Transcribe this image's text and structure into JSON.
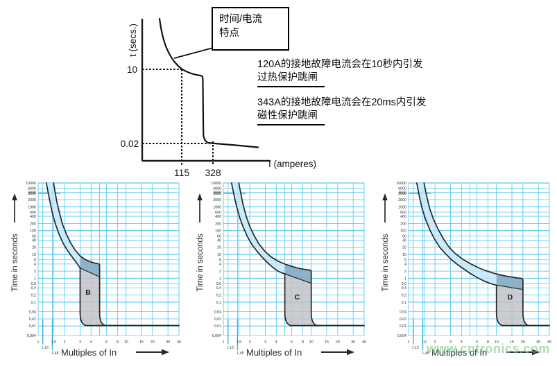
{
  "top_diagram": {
    "y_axis_label": "t (secs.)",
    "x_axis_label": "I (amperes)",
    "callout_line1": "时间/电流",
    "callout_line2": "特点",
    "tick_10": "10",
    "tick_002": "0.02",
    "tick_115": "115",
    "tick_328": "328",
    "note1_line1": "120A的接地故障电流会在10秒内引发",
    "note1_line2": "过热保护跳闸",
    "note2_line1": "343A的接地故障电流会在20ms内引发",
    "note2_line2": "磁性保护跳闸"
  },
  "watermark": "www.cntronics.com",
  "chart_data": {
    "type": "line",
    "description": "MCB time/current tripping characteristic bands for curve types B, C and D",
    "x_axis_label": "Multiples of In",
    "y_axis_label": "Time in seconds",
    "log_scale": true,
    "x_range": [
      1,
      40
    ],
    "y_range": [
      0.004,
      10000
    ],
    "y_tick_labels": [
      "10000",
      "6000",
      "4000",
      "3600",
      "2000",
      "1000",
      "600",
      "400",
      "200",
      "100",
      "60",
      "40",
      "20",
      "10",
      "6",
      "4",
      "2",
      "1",
      "0,6",
      "0,4",
      "0,2",
      "0,1",
      "0,04",
      "0,02",
      "0,01",
      "0,004"
    ],
    "y_tick_values": [
      10000,
      6000,
      4000,
      3600,
      2000,
      1000,
      600,
      400,
      200,
      100,
      60,
      40,
      20,
      10,
      6,
      4,
      2,
      1,
      0.6,
      0.4,
      0.2,
      0.1,
      0.04,
      0.02,
      0.01,
      0.004
    ],
    "y_strong_values": [
      10000,
      1000,
      100,
      10,
      1,
      0.1,
      0.01
    ],
    "x_tick_labels": [
      "1",
      "1,5",
      "2",
      "3",
      "4",
      "6",
      "8",
      "10",
      "15",
      "20",
      "30",
      "40"
    ],
    "x_tick_values": [
      1,
      1.5,
      2,
      3,
      4,
      6,
      8,
      10,
      15,
      20,
      30,
      40
    ],
    "x_grid_values": [
      1,
      1.13,
      1.45,
      1.5,
      2,
      3,
      4,
      5,
      6,
      8,
      10,
      15,
      20,
      30,
      40
    ],
    "sub_ticks": [
      {
        "label": "1,13",
        "value": 1.13
      },
      {
        "label": "1,45",
        "value": 1.45
      }
    ],
    "special_time_line": {
      "y": 3600,
      "x_end": 1.8
    },
    "instantaneous_floor_time": 0.01,
    "charts": [
      {
        "label": "B",
        "magnetic_trip_range": [
          3,
          5
        ],
        "label_pos": [
          3.7,
          0.21
        ],
        "diag_y": [
          2.7,
          1.15
        ],
        "upper_corner_y": 3.4,
        "upper": [
          [
            1.5,
            10000
          ],
          [
            1.56,
            4000
          ],
          [
            1.64,
            1500
          ],
          [
            1.76,
            500
          ],
          [
            1.9,
            180
          ],
          [
            2.1,
            70
          ],
          [
            2.35,
            30
          ],
          [
            2.65,
            15
          ],
          [
            3.0,
            8.8
          ],
          [
            3.4,
            6.3
          ],
          [
            3.9,
            5.0
          ],
          [
            4.4,
            4.4
          ],
          [
            4.75,
            4.15
          ]
        ],
        "lower": [
          [
            1.24,
            10000
          ],
          [
            1.3,
            4000
          ],
          [
            1.37,
            1500
          ],
          [
            1.46,
            500
          ],
          [
            1.58,
            180
          ],
          [
            1.73,
            70
          ],
          [
            1.92,
            30
          ],
          [
            2.15,
            15
          ],
          [
            2.4,
            8.5
          ],
          [
            2.65,
            5.2
          ],
          [
            2.85,
            3.6
          ],
          [
            3.0,
            2.7
          ]
        ]
      },
      {
        "label": "C",
        "magnetic_trip_range": [
          5,
          10
        ],
        "label_pos": [
          6.9,
          0.13
        ],
        "diag_y": [
          1.55,
          0.62
        ],
        "upper_corner_y": 1.9,
        "upper": [
          [
            1.5,
            10000
          ],
          [
            1.58,
            3600
          ],
          [
            1.68,
            1200
          ],
          [
            1.82,
            400
          ],
          [
            2.0,
            150
          ],
          [
            2.25,
            60
          ],
          [
            2.55,
            27
          ],
          [
            2.95,
            14
          ],
          [
            3.45,
            8.2
          ],
          [
            4.1,
            5.5
          ],
          [
            4.9,
            4.1
          ],
          [
            5.8,
            3.3
          ],
          [
            6.9,
            2.75
          ],
          [
            8.0,
            2.45
          ],
          [
            9.0,
            2.3
          ]
        ],
        "lower": [
          [
            1.24,
            10000
          ],
          [
            1.31,
            3600
          ],
          [
            1.4,
            1200
          ],
          [
            1.52,
            400
          ],
          [
            1.67,
            150
          ],
          [
            1.86,
            60
          ],
          [
            2.1,
            27
          ],
          [
            2.4,
            14
          ],
          [
            2.75,
            7.8
          ],
          [
            3.15,
            4.7
          ],
          [
            3.6,
            3.0
          ],
          [
            4.1,
            2.1
          ],
          [
            4.6,
            1.7
          ],
          [
            5.0,
            1.55
          ]
        ]
      },
      {
        "label": "D",
        "magnetic_trip_range": [
          10,
          20
        ],
        "label_pos": [
          14.3,
          0.13
        ],
        "diag_y": [
          0.52,
          0.34
        ],
        "upper_corner_y": 0.85,
        "upper": [
          [
            1.5,
            10000
          ],
          [
            1.6,
            3000
          ],
          [
            1.73,
            900
          ],
          [
            1.92,
            300
          ],
          [
            2.18,
            110
          ],
          [
            2.5,
            45
          ],
          [
            2.9,
            20
          ],
          [
            3.4,
            11
          ],
          [
            4.1,
            6.5
          ],
          [
            5.0,
            4.2
          ],
          [
            6.1,
            2.9
          ],
          [
            7.4,
            2.15
          ],
          [
            9.0,
            1.7
          ],
          [
            11,
            1.4
          ],
          [
            13.5,
            1.2
          ],
          [
            16,
            1.08
          ],
          [
            17.5,
            1.03
          ]
        ],
        "lower": [
          [
            1.24,
            10000
          ],
          [
            1.32,
            3000
          ],
          [
            1.42,
            900
          ],
          [
            1.56,
            300
          ],
          [
            1.74,
            110
          ],
          [
            1.97,
            45
          ],
          [
            2.26,
            20
          ],
          [
            2.62,
            11
          ],
          [
            3.05,
            6.2
          ],
          [
            3.6,
            3.8
          ],
          [
            4.3,
            2.4
          ],
          [
            5.1,
            1.55
          ],
          [
            6.1,
            1.05
          ],
          [
            7.2,
            0.78
          ],
          [
            8.4,
            0.62
          ],
          [
            9.4,
            0.545
          ],
          [
            10,
            0.52
          ]
        ]
      }
    ],
    "colors": {
      "grid": "#5ec9f0",
      "grid_strong": "#2ab5ea",
      "band": "#c3e6f8",
      "overlap": "#7ba3bd",
      "strip": "#bfc1c4",
      "curve": "#232628"
    }
  }
}
